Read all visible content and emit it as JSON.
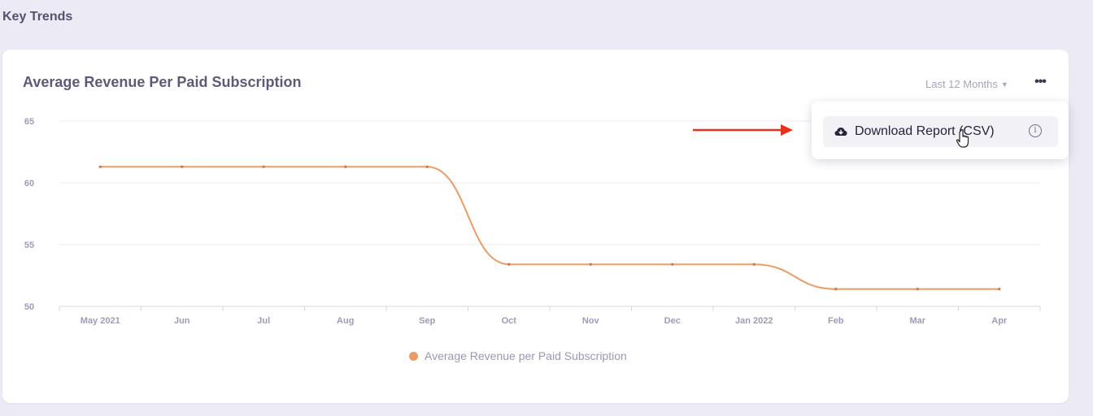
{
  "section": {
    "title": "Key Trends"
  },
  "card": {
    "title": "Average Revenue Per Paid Subscription",
    "range_label": "Last 12 Months",
    "more_label": "•••"
  },
  "menu": {
    "download_label": "Download Report (CSV)",
    "info_label": "i",
    "icons": {
      "download": "cloud-download-icon",
      "info": "info-circle-icon",
      "cursor": "hand-pointer-icon"
    }
  },
  "colors": {
    "series": "#ee9b63",
    "arrow": "#e8321e",
    "grid": "#ebe9f2"
  },
  "chart_data": {
    "type": "line",
    "title": "Average Revenue Per Paid Subscription",
    "categories": [
      "May 2021",
      "Jun",
      "Jul",
      "Aug",
      "Sep",
      "Oct",
      "Nov",
      "Dec",
      "Jan 2022",
      "Feb",
      "Mar",
      "Apr"
    ],
    "series": [
      {
        "name": "Average Revenue per Paid Subscription",
        "values": [
          61.3,
          61.3,
          61.3,
          61.3,
          61.3,
          53.4,
          53.4,
          53.4,
          53.4,
          51.4,
          51.4,
          51.4
        ]
      }
    ],
    "yticks": [
      50,
      55,
      60,
      65
    ],
    "ylim": [
      50,
      65
    ],
    "grid": true,
    "legend": "bottom-center",
    "xlabel": "",
    "ylabel": ""
  }
}
